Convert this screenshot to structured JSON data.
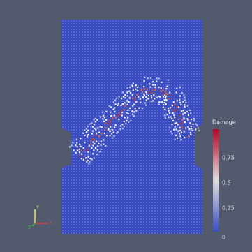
{
  "colorbar": {
    "title": "Damage",
    "ticks": [
      "0.75",
      "0.5",
      "0.25",
      "0"
    ]
  },
  "axes": {
    "y": "Y",
    "x": "X",
    "z": "Z"
  }
}
